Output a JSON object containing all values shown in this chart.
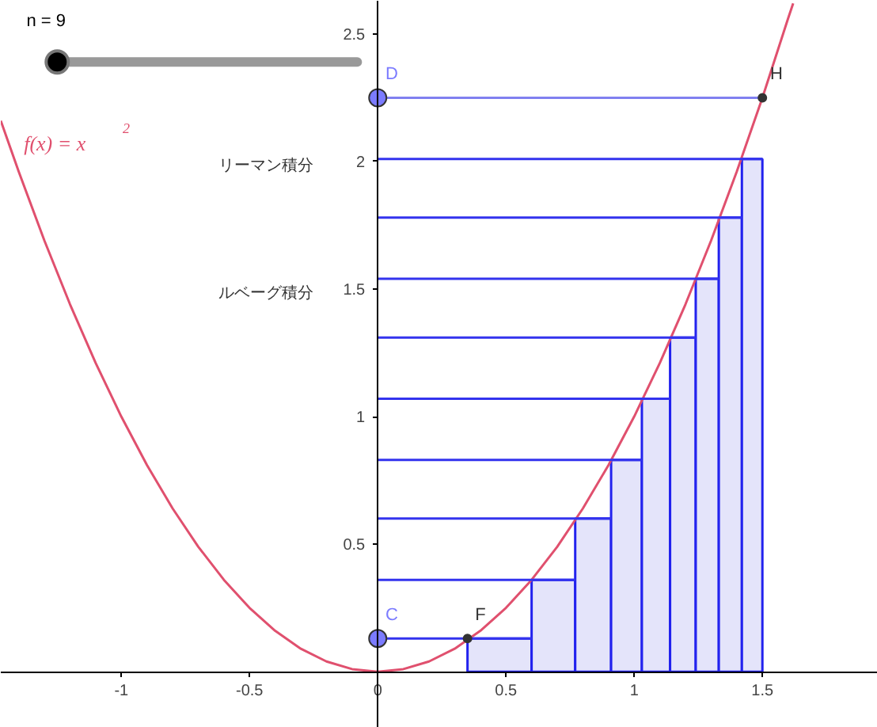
{
  "chart_data": {
    "type": "histogram",
    "bins": [
      0.35,
      0.6,
      0.77,
      0.91,
      1.03,
      1.14,
      1.24,
      1.33,
      1.42,
      1.5
    ],
    "values": [
      0.13,
      0.36,
      0.6,
      0.83,
      1.07,
      1.31,
      1.54,
      1.78,
      2.01
    ],
    "color": "#e4e4fa",
    "series": [
      {
        "type": "line",
        "color": "#e0506e",
        "x": [
          -1.47,
          -1.4,
          -1.3,
          -1.2,
          -1.1,
          -1.0,
          -0.9,
          -0.8,
          -0.7,
          -0.6,
          -0.5,
          -0.4,
          -0.3,
          -0.2,
          -0.1,
          0,
          0.1,
          0.2,
          0.3,
          0.4,
          0.5,
          0.6,
          0.7,
          0.8,
          0.9,
          1.0,
          1.1,
          1.2,
          1.3,
          1.4,
          1.5,
          1.6,
          1.62
        ],
        "values": [
          2.16,
          1.96,
          1.69,
          1.44,
          1.21,
          1,
          0.81,
          0.64,
          0.49,
          0.36,
          0.25,
          0.16,
          0.09,
          0.04,
          0.01,
          0,
          0.01,
          0.04,
          0.09,
          0.16,
          0.25,
          0.36,
          0.49,
          0.64,
          0.81,
          1,
          1.21,
          1.44,
          1.69,
          1.96,
          2.25,
          2.56,
          2.62
        ]
      },
      {
        "type": "line",
        "color": "#3333ee",
        "x": [
          0,
          0.6
        ],
        "values": [
          0.13,
          0.13
        ]
      },
      {
        "type": "line",
        "color": "#3333ee",
        "x": [
          0,
          0.77
        ],
        "values": [
          0.36,
          0.36
        ]
      },
      {
        "type": "line",
        "color": "#3333ee",
        "x": [
          0,
          0.91
        ],
        "values": [
          0.6,
          0.6
        ]
      },
      {
        "type": "line",
        "color": "#3333ee",
        "x": [
          0,
          1.03
        ],
        "values": [
          0.83,
          0.83
        ]
      },
      {
        "type": "line",
        "color": "#3333ee",
        "x": [
          0,
          1.14
        ],
        "values": [
          1.07,
          1.07
        ]
      },
      {
        "type": "line",
        "color": "#3333ee",
        "x": [
          0,
          1.24
        ],
        "values": [
          1.31,
          1.31
        ]
      },
      {
        "type": "line",
        "color": "#3333ee",
        "x": [
          0,
          1.33
        ],
        "values": [
          1.54,
          1.54
        ]
      },
      {
        "type": "line",
        "color": "#3333ee",
        "x": [
          0,
          1.42
        ],
        "values": [
          1.78,
          1.78
        ]
      },
      {
        "type": "line",
        "color": "#3333ee",
        "x": [
          0,
          1.5
        ],
        "values": [
          2.01,
          2.01
        ]
      },
      {
        "type": "line",
        "color": "#8080f0",
        "x": [
          0,
          1.5
        ],
        "values": [
          2.25,
          2.25
        ]
      },
      {
        "type": "scatter",
        "color": "#7b7bff",
        "x": [
          0,
          0
        ],
        "values": [
          0.13,
          2.25
        ]
      },
      {
        "type": "scatter",
        "color": "#333333",
        "x": [
          0.35,
          1.5
        ],
        "values": [
          0.13,
          2.25
        ]
      }
    ],
    "xlim": [
      -1.47,
      1.95
    ],
    "ylim": [
      -0.22,
      2.63
    ],
    "xticks": [
      -1,
      -0.5,
      0,
      0.5,
      1,
      1.5
    ],
    "yticks": [
      0.5,
      1,
      1.5,
      2,
      2.5
    ],
    "grid": false,
    "annotations": [
      {
        "text": "C",
        "x": 0,
        "y": 0.13
      },
      {
        "text": "D",
        "x": 0,
        "y": 2.25
      },
      {
        "text": "F",
        "x": 0.35,
        "y": 0.13
      },
      {
        "text": "H",
        "x": 1.5,
        "y": 2.25
      },
      "n = 9",
      "f(x) = x$^{2}$",
      "リーマン積分",
      "ルベーグ積分"
    ]
  }
}
